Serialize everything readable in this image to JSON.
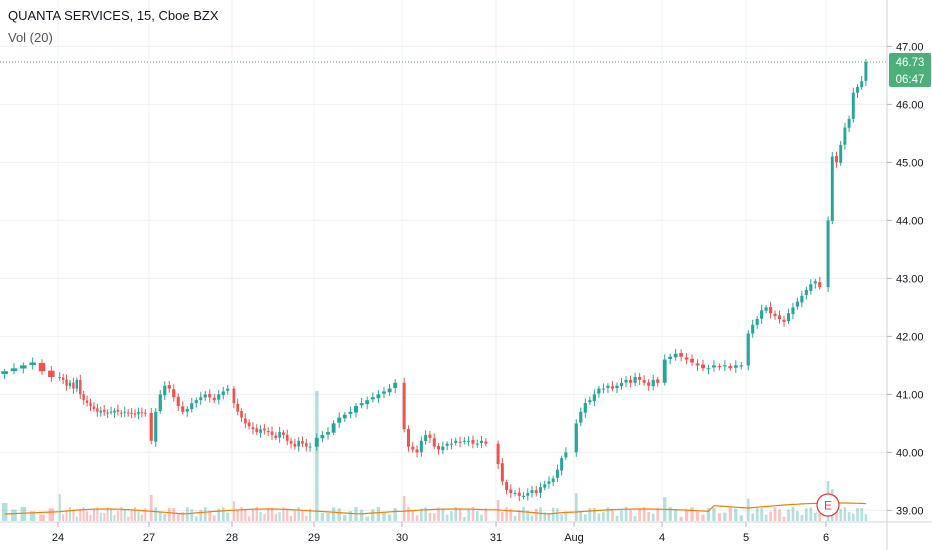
{
  "header": {
    "symbol_line": "QUANTA SERVICES, 15, Cboe BZX",
    "volume_line": "Vol (20)"
  },
  "price_label": {
    "price": "46.73",
    "countdown": "06:47"
  },
  "earnings_marker": "E",
  "colors": {
    "up": "#26a69a",
    "down": "#ef5350",
    "vol_ma": "#f57c00",
    "badge": "#4caf7a",
    "grid": "#eef0f3"
  },
  "chart_data": {
    "type": "candlestick",
    "x_ticks": [
      "24",
      "27",
      "28",
      "29",
      "30",
      "31",
      "Aug",
      "4",
      "5",
      "6"
    ],
    "y_ticks": [
      "39.00",
      "40.00",
      "41.00",
      "42.00",
      "43.00",
      "44.00",
      "45.00",
      "46.00",
      "47.00"
    ],
    "ylim": [
      38.8,
      47.8
    ],
    "last_price": 46.73,
    "sessions": [
      {
        "label": "",
        "closes": [
          41.4,
          41.45,
          41.5,
          41.55,
          41.4,
          41.3
        ]
      },
      {
        "label": "24",
        "closes": [
          41.3,
          41.25,
          41.15,
          41.2,
          41.1,
          41.25,
          41.0,
          40.9,
          40.85,
          40.8,
          40.75,
          40.7,
          40.72,
          40.7,
          40.68,
          40.7,
          40.72,
          40.7,
          40.68,
          40.7,
          40.67,
          40.68,
          40.65,
          40.7,
          40.68,
          40.68
        ]
      },
      {
        "label": "27",
        "closes": [
          40.2,
          40.7,
          41.0,
          41.15,
          41.1,
          40.95,
          40.8,
          40.7,
          40.75,
          40.85,
          40.9,
          40.95,
          41.0,
          40.95,
          40.9,
          41.0,
          41.05,
          41.1
        ]
      },
      {
        "label": "28",
        "closes": [
          40.85,
          40.7,
          40.6,
          40.5,
          40.45,
          40.4,
          40.35,
          40.4,
          40.38,
          40.35,
          40.3,
          40.25,
          40.35,
          40.3,
          40.2,
          40.15,
          40.1,
          40.2,
          40.15,
          40.1,
          40.1
        ]
      },
      {
        "label": "29",
        "closes": [
          40.25,
          40.3,
          40.35,
          40.5,
          40.6,
          40.65,
          40.7,
          40.8,
          40.85,
          40.9,
          40.95,
          41.0,
          41.05,
          41.1,
          41.2
        ]
      },
      {
        "label": "30",
        "closes": [
          40.4,
          40.1,
          40.05,
          40.0,
          40.2,
          40.3,
          40.25,
          40.1,
          40.05,
          40.1,
          40.15,
          40.15,
          40.2,
          40.18,
          40.2,
          40.2,
          40.15,
          40.15,
          40.2,
          40.15
        ]
      },
      {
        "label": "31",
        "closes": [
          39.8,
          39.5,
          39.35,
          39.3,
          39.3,
          39.25,
          39.25,
          39.3,
          39.35,
          39.3,
          39.4,
          39.45,
          39.5,
          39.55,
          39.7,
          39.9,
          40.0
        ]
      },
      {
        "label": "Aug",
        "closes": [
          40.5,
          40.7,
          40.85,
          40.9,
          41.0,
          41.1,
          41.1,
          41.15,
          41.1,
          41.15,
          41.2,
          41.25,
          41.2,
          41.3,
          41.25,
          41.2,
          41.15,
          41.25,
          41.2
        ]
      },
      {
        "label": "4",
        "closes": [
          41.6,
          41.65,
          41.7,
          41.65,
          41.6,
          41.55,
          41.5,
          41.45,
          41.45,
          41.5,
          41.48,
          41.5,
          41.45,
          41.5,
          41.5
        ]
      },
      {
        "label": "5",
        "closes": [
          42.05,
          42.2,
          42.3,
          42.45,
          42.5,
          42.4,
          42.35,
          42.3,
          42.25,
          42.4,
          42.5,
          42.6,
          42.7,
          42.8,
          42.9,
          42.95,
          42.85
        ]
      },
      {
        "label": "6",
        "closes": [
          44.0,
          45.1,
          45.0,
          45.3,
          45.6,
          45.75,
          46.2,
          46.3,
          46.4,
          46.73
        ]
      }
    ]
  }
}
